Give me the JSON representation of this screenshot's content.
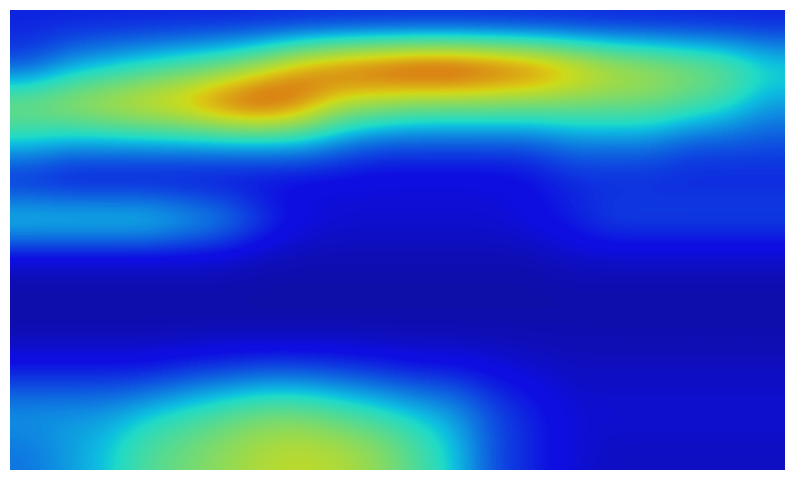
{
  "chart_data": {
    "type": "heatmap",
    "tick_labels": false,
    "value_range": [
      0,
      1
    ],
    "cells": [
      [
        0.15,
        0.15,
        0.15,
        0.15,
        0.15,
        0.15,
        0.15,
        0.15,
        0.15,
        0.15,
        0.15,
        0.15,
        0.15,
        0.15,
        0.15,
        0.15,
        0.15,
        0.15,
        0.15,
        0.15
      ],
      [
        0.2,
        0.3,
        0.35,
        0.4,
        0.45,
        0.5,
        0.6,
        0.75,
        0.85,
        0.9,
        0.95,
        0.95,
        0.9,
        0.85,
        0.75,
        0.65,
        0.6,
        0.55,
        0.5,
        0.4
      ],
      [
        0.55,
        0.6,
        0.65,
        0.7,
        0.75,
        0.85,
        0.9,
        0.8,
        0.6,
        0.55,
        0.5,
        0.5,
        0.5,
        0.5,
        0.5,
        0.5,
        0.5,
        0.45,
        0.4,
        0.3
      ],
      [
        0.35,
        0.3,
        0.3,
        0.3,
        0.3,
        0.3,
        0.3,
        0.3,
        0.25,
        0.2,
        0.2,
        0.2,
        0.2,
        0.2,
        0.25,
        0.25,
        0.25,
        0.2,
        0.2,
        0.2
      ],
      [
        0.12,
        0.1,
        0.1,
        0.1,
        0.1,
        0.1,
        0.1,
        0.1,
        0.1,
        0.1,
        0.1,
        0.1,
        0.1,
        0.12,
        0.15,
        0.15,
        0.15,
        0.15,
        0.15,
        0.15
      ],
      [
        0.4,
        0.4,
        0.4,
        0.4,
        0.35,
        0.3,
        0.2,
        0.12,
        0.1,
        0.1,
        0.1,
        0.1,
        0.1,
        0.12,
        0.15,
        0.2,
        0.2,
        0.2,
        0.2,
        0.2
      ],
      [
        0.08,
        0.08,
        0.08,
        0.08,
        0.08,
        0.08,
        0.06,
        0.06,
        0.06,
        0.06,
        0.06,
        0.06,
        0.06,
        0.06,
        0.08,
        0.08,
        0.08,
        0.08,
        0.08,
        0.08
      ],
      [
        0.05,
        0.05,
        0.05,
        0.05,
        0.05,
        0.05,
        0.05,
        0.05,
        0.05,
        0.05,
        0.05,
        0.05,
        0.05,
        0.05,
        0.05,
        0.05,
        0.05,
        0.05,
        0.05,
        0.05
      ],
      [
        0.06,
        0.06,
        0.06,
        0.06,
        0.06,
        0.06,
        0.06,
        0.06,
        0.06,
        0.06,
        0.06,
        0.06,
        0.06,
        0.06,
        0.06,
        0.06,
        0.06,
        0.06,
        0.06,
        0.06
      ],
      [
        0.15,
        0.15,
        0.15,
        0.15,
        0.18,
        0.2,
        0.22,
        0.22,
        0.2,
        0.18,
        0.15,
        0.15,
        0.12,
        0.1,
        0.08,
        0.08,
        0.08,
        0.08,
        0.08,
        0.08
      ],
      [
        0.3,
        0.3,
        0.3,
        0.35,
        0.4,
        0.45,
        0.5,
        0.5,
        0.45,
        0.4,
        0.35,
        0.3,
        0.2,
        0.15,
        0.1,
        0.1,
        0.1,
        0.1,
        0.1,
        0.1
      ],
      [
        0.25,
        0.3,
        0.35,
        0.45,
        0.5,
        0.55,
        0.6,
        0.62,
        0.6,
        0.55,
        0.45,
        0.35,
        0.2,
        0.15,
        0.1,
        0.08,
        0.08,
        0.08,
        0.08,
        0.08
      ]
    ]
  }
}
